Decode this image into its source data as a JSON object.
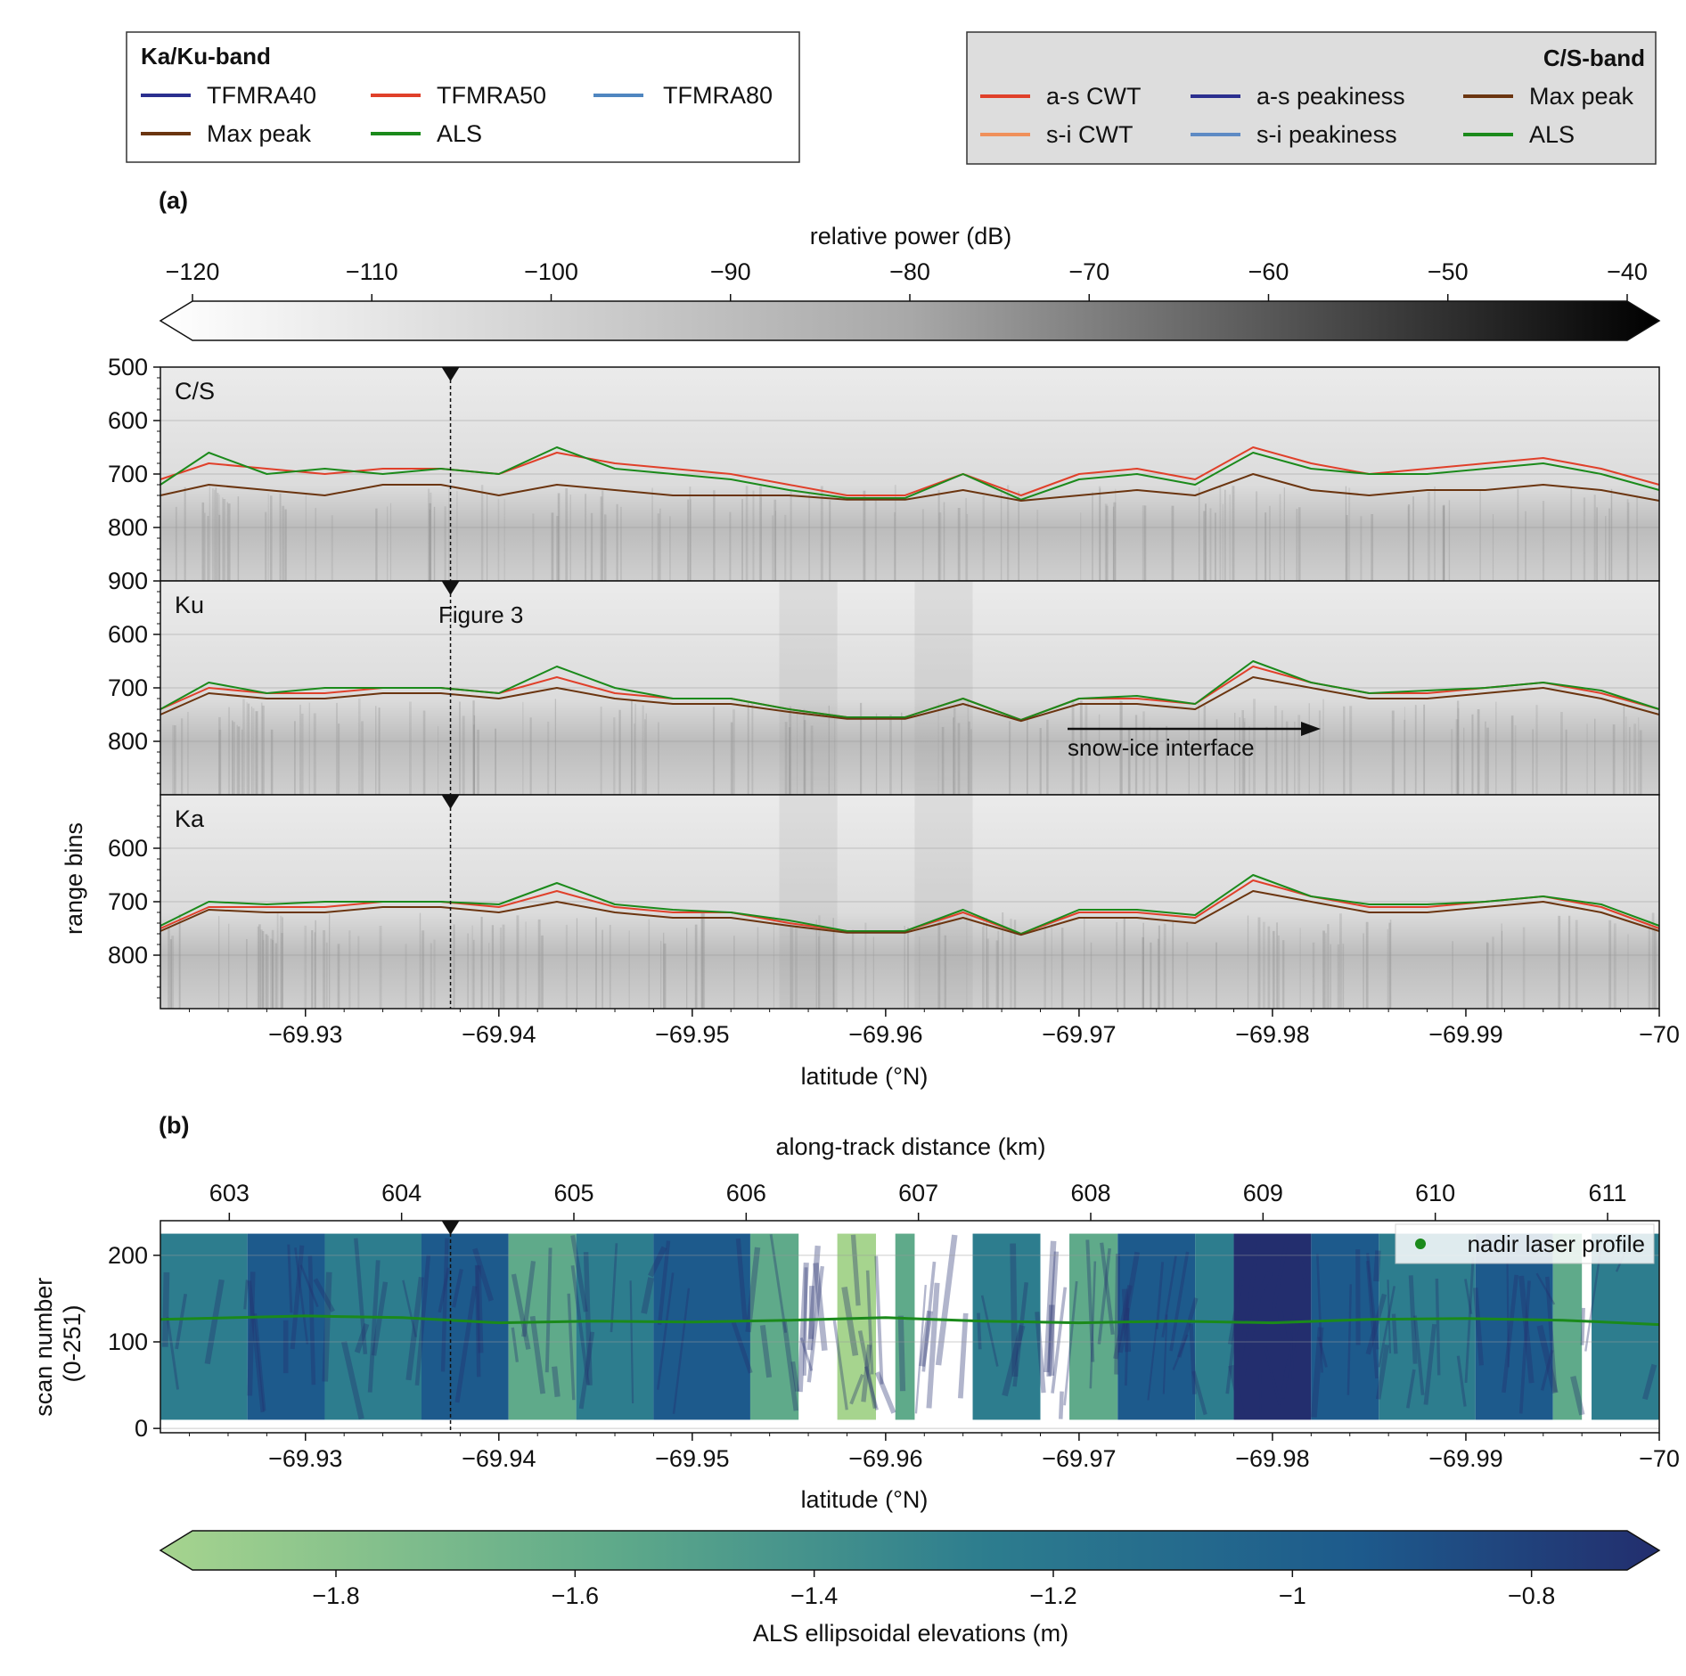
{
  "legend_kaku": {
    "title": "Ka/Ku-band",
    "entries": [
      {
        "label": "TFMRA40",
        "color": "#2b2f8f"
      },
      {
        "label": "TFMRA50",
        "color": "#e0402a"
      },
      {
        "label": "TFMRA80",
        "color": "#4f86c0"
      },
      {
        "label": "Max peak",
        "color": "#6b3510"
      },
      {
        "label": "ALS",
        "color": "#1b8a1b"
      }
    ]
  },
  "legend_cs": {
    "title": "C/S-band",
    "entries": [
      {
        "label": "a-s CWT",
        "color": "#e0402a"
      },
      {
        "label": "a-s peakiness",
        "color": "#2b2f8f"
      },
      {
        "label": "Max peak",
        "color": "#6b3510"
      },
      {
        "label": "s-i CWT",
        "color": "#f0905a"
      },
      {
        "label": "s-i peakiness",
        "color": "#5d8ac4"
      },
      {
        "label": "ALS",
        "color": "#1b8a1b"
      }
    ]
  },
  "panel_a_label": "(a)",
  "panel_b_label": "(b)",
  "power_colorbar": {
    "label": "relative power (dB)",
    "ticks": [
      "−120",
      "−110",
      "−100",
      "−90",
      "−80",
      "−70",
      "−60",
      "−50",
      "−40"
    ],
    "range": [
      -120,
      -40
    ],
    "colormap": [
      "#ffffff",
      "#000000"
    ]
  },
  "als_colorbar": {
    "label": "ALS ellipsoidal elevations (m)",
    "ticks": [
      "−1.8",
      "−1.6",
      "−1.4",
      "−1.2",
      "−1",
      "−0.8"
    ],
    "tick_values": [
      -1.8,
      -1.6,
      -1.4,
      -1.2,
      -1.0,
      -0.8
    ],
    "range": [
      -1.92,
      -0.72
    ],
    "colormap": [
      "#a6d48e",
      "#5faa8a",
      "#2d7d8e",
      "#1d5a8c",
      "#232e6e"
    ]
  },
  "figure_annotation": "Figure 3",
  "snow_ice_annotation": "snow-ice interface",
  "nadir_legend": "nadir laser profile",
  "axes": {
    "ylabel_a": "range bins",
    "ylabel_b": [
      "scan number",
      "(0-251)"
    ],
    "xlabel": "latitude (°N)",
    "xlabel_top_b": "along-track distance (km)",
    "x_ticks": [
      "−69.93",
      "−69.94",
      "−69.95",
      "−69.96",
      "−69.97",
      "−69.98",
      "−69.99",
      "−70"
    ],
    "distance_ticks": [
      "603",
      "604",
      "605",
      "606",
      "607",
      "608",
      "609",
      "610",
      "611"
    ],
    "scan_ticks": [
      "0",
      "100",
      "200"
    ]
  },
  "chart_data": [
    {
      "type": "line",
      "panel": "C/S",
      "xlabel": "latitude (°N)",
      "ylabel": "range bins",
      "x_ticks": [
        -69.93,
        -69.94,
        -69.95,
        -69.96,
        -69.97,
        -69.98,
        -69.99,
        -70.0
      ],
      "xlim": [
        -69.9225,
        -70.0
      ],
      "ylim": [
        900,
        500
      ],
      "y_ticks": [
        "500",
        "600",
        "700",
        "800",
        "900"
      ],
      "marker_latitude": -69.9375,
      "x": [
        -69.9225,
        -69.925,
        -69.928,
        -69.931,
        -69.934,
        -69.937,
        -69.94,
        -69.943,
        -69.946,
        -69.949,
        -69.952,
        -69.955,
        -69.958,
        -69.961,
        -69.964,
        -69.967,
        -69.97,
        -69.973,
        -69.976,
        -69.979,
        -69.982,
        -69.985,
        -69.988,
        -69.991,
        -69.994,
        -69.997,
        -70.0
      ],
      "series": [
        {
          "name": "a-s CWT",
          "values": [
            710,
            680,
            690,
            700,
            690,
            690,
            700,
            660,
            680,
            690,
            700,
            720,
            740,
            740,
            700,
            740,
            700,
            690,
            710,
            650,
            680,
            700,
            690,
            680,
            670,
            690,
            720
          ]
        },
        {
          "name": "ALS",
          "values": [
            720,
            660,
            700,
            690,
            700,
            690,
            700,
            650,
            690,
            700,
            710,
            730,
            745,
            745,
            700,
            748,
            710,
            700,
            720,
            660,
            690,
            700,
            700,
            690,
            680,
            700,
            730
          ]
        },
        {
          "name": "Max peak",
          "values": [
            740,
            720,
            730,
            740,
            720,
            720,
            740,
            720,
            730,
            740,
            740,
            740,
            748,
            748,
            730,
            750,
            740,
            730,
            740,
            700,
            730,
            740,
            730,
            730,
            720,
            730,
            750
          ]
        }
      ]
    },
    {
      "type": "line",
      "panel": "Ku",
      "xlabel": "latitude (°N)",
      "ylabel": "range bins",
      "x_ticks": [
        -69.93,
        -69.94,
        -69.95,
        -69.96,
        -69.97,
        -69.98,
        -69.99,
        -70.0
      ],
      "xlim": [
        -69.9225,
        -70.0
      ],
      "ylim": [
        900,
        500
      ],
      "y_ticks": [
        "600",
        "700",
        "800"
      ],
      "marker_latitude": -69.9375,
      "x": [
        -69.9225,
        -69.925,
        -69.928,
        -69.931,
        -69.934,
        -69.937,
        -69.94,
        -69.943,
        -69.946,
        -69.949,
        -69.952,
        -69.955,
        -69.958,
        -69.961,
        -69.964,
        -69.967,
        -69.97,
        -69.973,
        -69.976,
        -69.979,
        -69.982,
        -69.985,
        -69.988,
        -69.991,
        -69.994,
        -69.997,
        -70.0
      ],
      "series": [
        {
          "name": "TFMRA50",
          "values": [
            740,
            700,
            710,
            710,
            700,
            700,
            710,
            680,
            710,
            720,
            720,
            740,
            755,
            755,
            720,
            760,
            720,
            720,
            730,
            660,
            690,
            710,
            710,
            700,
            690,
            710,
            740
          ]
        },
        {
          "name": "ALS",
          "values": [
            740,
            690,
            710,
            700,
            700,
            700,
            710,
            660,
            700,
            720,
            720,
            740,
            755,
            755,
            720,
            760,
            720,
            715,
            730,
            650,
            690,
            710,
            705,
            700,
            690,
            705,
            740
          ]
        },
        {
          "name": "Max peak",
          "values": [
            750,
            710,
            720,
            720,
            710,
            710,
            720,
            700,
            720,
            730,
            730,
            745,
            758,
            758,
            730,
            762,
            730,
            730,
            740,
            680,
            700,
            720,
            720,
            710,
            700,
            720,
            750
          ]
        }
      ]
    },
    {
      "type": "line",
      "panel": "Ka",
      "xlabel": "latitude (°N)",
      "ylabel": "range bins",
      "x_ticks": [
        -69.93,
        -69.94,
        -69.95,
        -69.96,
        -69.97,
        -69.98,
        -69.99,
        -70.0
      ],
      "xlim": [
        -69.9225,
        -70.0
      ],
      "ylim": [
        900,
        500
      ],
      "y_ticks": [
        "600",
        "700",
        "800"
      ],
      "marker_latitude": -69.9375,
      "x": [
        -69.9225,
        -69.925,
        -69.928,
        -69.931,
        -69.934,
        -69.937,
        -69.94,
        -69.943,
        -69.946,
        -69.949,
        -69.952,
        -69.955,
        -69.958,
        -69.961,
        -69.964,
        -69.967,
        -69.97,
        -69.973,
        -69.976,
        -69.979,
        -69.982,
        -69.985,
        -69.988,
        -69.991,
        -69.994,
        -69.997,
        -70.0
      ],
      "series": [
        {
          "name": "TFMRA50",
          "values": [
            750,
            710,
            710,
            710,
            700,
            700,
            710,
            680,
            710,
            720,
            720,
            740,
            755,
            755,
            720,
            760,
            720,
            720,
            730,
            660,
            690,
            710,
            710,
            700,
            690,
            710,
            750
          ]
        },
        {
          "name": "ALS",
          "values": [
            745,
            700,
            705,
            700,
            700,
            700,
            705,
            665,
            705,
            715,
            720,
            735,
            755,
            755,
            715,
            760,
            715,
            715,
            725,
            650,
            690,
            705,
            705,
            700,
            690,
            705,
            745
          ]
        },
        {
          "name": "Max peak",
          "values": [
            755,
            715,
            720,
            720,
            710,
            710,
            720,
            700,
            720,
            730,
            730,
            745,
            758,
            758,
            730,
            762,
            730,
            730,
            740,
            680,
            700,
            720,
            720,
            710,
            700,
            720,
            755
          ]
        }
      ]
    },
    {
      "type": "heatmap",
      "panel": "(b)",
      "xlabel": "latitude (°N)",
      "ylabel": "scan number (0-251)",
      "x2label": "along-track distance (km)",
      "xlim": [
        -69.9225,
        -70.0
      ],
      "ylim": [
        -5,
        240
      ],
      "distance_range_km": [
        602.6,
        611.3
      ],
      "value_label": "ALS ellipsoidal elevations (m)",
      "value_range": [
        -1.92,
        -0.72
      ],
      "series": [
        {
          "name": "nadir laser profile",
          "x": [
            -69.9225,
            -69.93,
            -69.935,
            -69.94,
            -69.945,
            -69.95,
            -69.955,
            -69.96,
            -69.965,
            -69.97,
            -69.975,
            -69.98,
            -69.985,
            -69.99,
            -69.995,
            -70.0
          ],
          "values": [
            126,
            130,
            128,
            122,
            124,
            123,
            125,
            128,
            124,
            122,
            124,
            122,
            126,
            127,
            125,
            120
          ]
        }
      ]
    }
  ]
}
